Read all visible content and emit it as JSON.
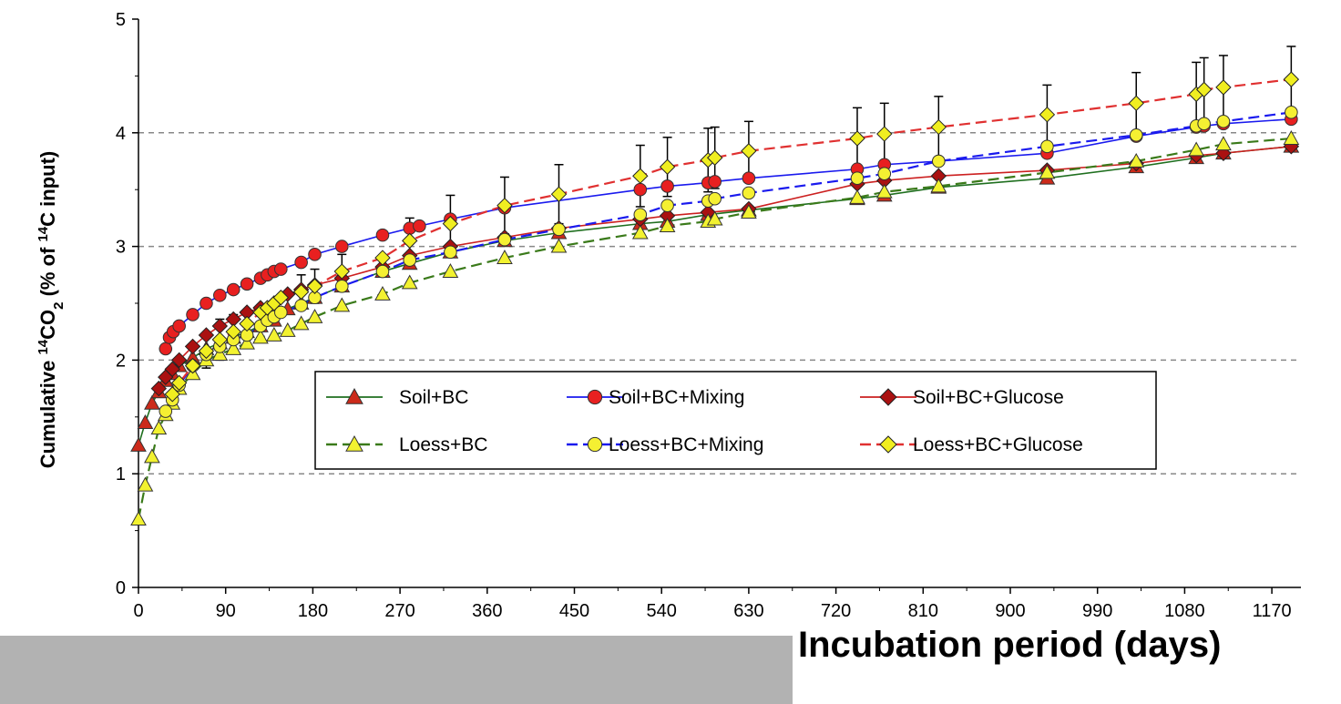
{
  "chart_data": {
    "type": "line",
    "ylabel_parts": {
      "pre": "Cumulative ",
      "sup1": "14",
      "mid": "CO",
      "sub": "2",
      "post1": " (% of ",
      "sup2": "14",
      "post2": "C input)"
    },
    "xlabel": "Incubation period (days)",
    "xlim": [
      0,
      1200
    ],
    "ylim": [
      0,
      5
    ],
    "xticks": [
      "0",
      "90",
      "180",
      "270",
      "360",
      "450",
      "540",
      "630",
      "720",
      "810",
      "900",
      "990",
      "1080",
      "1170"
    ],
    "yticks": [
      "0",
      "1",
      "2",
      "3",
      "4",
      "5"
    ],
    "grid": "horizontal dashed at 1, 2, 3, 4",
    "legend_position": "center-left, inside plot",
    "series": [
      {
        "name": "Soil+BC",
        "color": "#1f6f1f",
        "marker": "triangle",
        "marker_fill": "#cc2a1a",
        "dashed": false,
        "x": [
          0,
          7,
          14,
          21,
          28,
          35,
          42,
          56,
          70,
          84,
          98,
          112,
          126,
          140,
          154,
          168,
          182,
          210,
          252,
          280,
          322,
          378,
          434,
          518,
          546,
          588,
          630,
          742,
          770,
          826,
          938,
          1030,
          1092,
          1120,
          1190
        ],
        "y": [
          1.25,
          1.45,
          1.62,
          1.72,
          1.82,
          1.88,
          1.95,
          2.02,
          2.1,
          2.15,
          2.2,
          2.25,
          2.3,
          2.35,
          2.45,
          2.5,
          2.55,
          2.65,
          2.78,
          2.85,
          2.95,
          3.05,
          3.12,
          3.2,
          3.22,
          3.28,
          3.32,
          3.42,
          3.45,
          3.52,
          3.6,
          3.7,
          3.78,
          3.82,
          3.88
        ]
      },
      {
        "name": "Soil+BC+Mixing",
        "color": "#1a1aee",
        "marker": "circle",
        "marker_fill": "#e82020",
        "dashed": false,
        "x": [
          28,
          32,
          36,
          42,
          56,
          70,
          84,
          98,
          112,
          126,
          133,
          140,
          147,
          168,
          182,
          210,
          252,
          280,
          290,
          322,
          378,
          518,
          546,
          588,
          595,
          630,
          742,
          770,
          826,
          938,
          1030,
          1092,
          1100,
          1120,
          1190
        ],
        "y": [
          2.1,
          2.2,
          2.25,
          2.3,
          2.4,
          2.5,
          2.57,
          2.62,
          2.67,
          2.72,
          2.75,
          2.78,
          2.8,
          2.86,
          2.93,
          3.0,
          3.1,
          3.16,
          3.18,
          3.24,
          3.34,
          3.5,
          3.53,
          3.56,
          3.57,
          3.6,
          3.68,
          3.72,
          3.75,
          3.82,
          3.97,
          4.05,
          4.06,
          4.08,
          4.12
        ]
      },
      {
        "name": "Soil+BC+Glucose",
        "color": "#cc2020",
        "marker": "diamond",
        "marker_fill": "#aa1111",
        "dashed": false,
        "x": [
          21,
          28,
          35,
          42,
          56,
          70,
          84,
          98,
          112,
          126,
          140,
          154,
          168,
          182,
          210,
          252,
          280,
          322,
          378,
          434,
          518,
          546,
          588,
          630,
          742,
          770,
          826,
          938,
          1030,
          1092,
          1120,
          1190
        ],
        "y": [
          1.75,
          1.85,
          1.92,
          2.0,
          2.12,
          2.22,
          2.3,
          2.36,
          2.42,
          2.46,
          2.5,
          2.58,
          2.62,
          2.66,
          2.72,
          2.82,
          2.92,
          3.0,
          3.08,
          3.16,
          3.24,
          3.27,
          3.3,
          3.33,
          3.55,
          3.58,
          3.62,
          3.67,
          3.73,
          3.8,
          3.82,
          3.88
        ]
      },
      {
        "name": "Loess+BC",
        "color": "#3a7a1a",
        "marker": "triangle",
        "marker_fill": "#f2f230",
        "dashed": true,
        "x": [
          0,
          7,
          14,
          21,
          28,
          35,
          42,
          56,
          70,
          84,
          98,
          112,
          126,
          140,
          154,
          168,
          182,
          210,
          252,
          280,
          322,
          378,
          434,
          518,
          546,
          588,
          595,
          630,
          742,
          770,
          826,
          938,
          1030,
          1092,
          1120,
          1190
        ],
        "y": [
          0.6,
          0.9,
          1.15,
          1.4,
          1.52,
          1.62,
          1.75,
          1.88,
          2.0,
          2.05,
          2.1,
          2.15,
          2.2,
          2.22,
          2.26,
          2.32,
          2.38,
          2.48,
          2.58,
          2.68,
          2.78,
          2.9,
          3.0,
          3.12,
          3.18,
          3.22,
          3.24,
          3.3,
          3.43,
          3.48,
          3.53,
          3.65,
          3.75,
          3.85,
          3.9,
          3.95
        ]
      },
      {
        "name": "Loess+BC+Mixing",
        "color": "#1a1aee",
        "marker": "circle",
        "marker_fill": "#f5f032",
        "dashed": true,
        "x": [
          28,
          35,
          42,
          56,
          70,
          84,
          98,
          112,
          126,
          133,
          140,
          147,
          168,
          182,
          210,
          252,
          280,
          322,
          378,
          434,
          518,
          546,
          588,
          595,
          630,
          742,
          770,
          826,
          938,
          1030,
          1092,
          1100,
          1120,
          1190
        ],
        "y": [
          1.55,
          1.65,
          1.78,
          1.95,
          2.05,
          2.12,
          2.18,
          2.22,
          2.3,
          2.35,
          2.38,
          2.42,
          2.48,
          2.55,
          2.65,
          2.78,
          2.88,
          2.95,
          3.06,
          3.15,
          3.28,
          3.36,
          3.4,
          3.42,
          3.47,
          3.6,
          3.64,
          3.75,
          3.88,
          3.98,
          4.06,
          4.08,
          4.1,
          4.18
        ]
      },
      {
        "name": "Loess+BC+Glucose",
        "color": "#e03030",
        "marker": "diamond",
        "marker_fill": "#f0ee20",
        "dashed": true,
        "x": [
          35,
          42,
          56,
          70,
          84,
          98,
          112,
          126,
          133,
          140,
          147,
          168,
          182,
          210,
          252,
          280,
          322,
          378,
          434,
          518,
          546,
          588,
          595,
          630,
          742,
          770,
          826,
          938,
          1030,
          1092,
          1100,
          1120,
          1190
        ],
        "y": [
          1.7,
          1.8,
          1.95,
          2.08,
          2.18,
          2.25,
          2.32,
          2.42,
          2.46,
          2.5,
          2.55,
          2.6,
          2.65,
          2.78,
          2.9,
          3.05,
          3.2,
          3.36,
          3.46,
          3.62,
          3.7,
          3.76,
          3.78,
          3.84,
          3.95,
          3.99,
          4.05,
          4.16,
          4.26,
          4.34,
          4.38,
          4.4,
          4.47
        ]
      }
    ],
    "error_bars": [
      {
        "x": 518,
        "y": 3.62,
        "err": 0.27
      },
      {
        "x": 546,
        "y": 3.7,
        "err": 0.26
      },
      {
        "x": 588,
        "y": 3.76,
        "err": 0.28
      },
      {
        "x": 595,
        "y": 3.78,
        "err": 0.27
      },
      {
        "x": 630,
        "y": 3.84,
        "err": 0.26
      },
      {
        "x": 742,
        "y": 3.95,
        "err": 0.27
      },
      {
        "x": 770,
        "y": 3.99,
        "err": 0.27
      },
      {
        "x": 826,
        "y": 4.05,
        "err": 0.27
      },
      {
        "x": 938,
        "y": 4.16,
        "err": 0.26
      },
      {
        "x": 1030,
        "y": 4.26,
        "err": 0.27
      },
      {
        "x": 1092,
        "y": 4.34,
        "err": 0.28
      },
      {
        "x": 1100,
        "y": 4.38,
        "err": 0.28
      },
      {
        "x": 1120,
        "y": 4.4,
        "err": 0.28
      },
      {
        "x": 1190,
        "y": 4.47,
        "err": 0.29
      },
      {
        "x": 322,
        "y": 3.2,
        "err": 0.25
      },
      {
        "x": 378,
        "y": 3.36,
        "err": 0.25
      },
      {
        "x": 434,
        "y": 3.46,
        "err": 0.26
      },
      {
        "x": 280,
        "y": 3.05,
        "err": 0.2
      },
      {
        "x": 210,
        "y": 2.78,
        "err": 0.15
      },
      {
        "x": 182,
        "y": 2.65,
        "err": 0.15
      },
      {
        "x": 168,
        "y": 2.6,
        "err": 0.15
      },
      {
        "x": 98,
        "y": 2.25,
        "err": 0.15
      },
      {
        "x": 84,
        "y": 2.18,
        "err": 0.18
      },
      {
        "x": 70,
        "y": 2.08,
        "err": 0.15
      }
    ]
  }
}
